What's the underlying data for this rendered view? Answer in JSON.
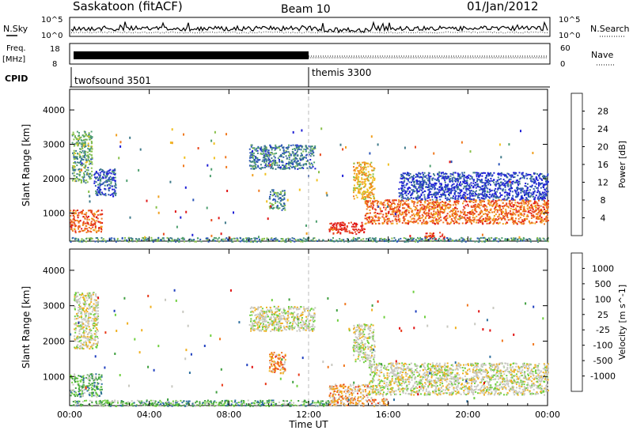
{
  "header": {
    "station": "Saskatoon (fitACF)",
    "beam": "Beam 10",
    "date": "01/Jan/2012"
  },
  "top_panels": {
    "nsky_label": "N.Sky",
    "nsearch_label": "N.Search",
    "freq_label_1": "Freq.",
    "freq_label_2": "[MHz]",
    "nave_label": "Nave",
    "cpid_label": "CPID",
    "noise_ticks_left": [
      "10^5",
      "10^0"
    ],
    "noise_ticks_right": [
      "10^5",
      "10^0"
    ],
    "freq_ticks": [
      "18",
      "8"
    ],
    "nave_ticks": [
      "60",
      "0"
    ],
    "cpid_programs": [
      {
        "name": "twofsound 3501",
        "start_hour": 0
      },
      {
        "name": "themis 3300",
        "start_hour": 12
      }
    ]
  },
  "chart_data": [
    {
      "type": "heatmap",
      "title": "Power",
      "xlabel": "Time UT",
      "ylabel": "Slant Range [km]",
      "xlim": [
        0,
        24
      ],
      "ylim": [
        180,
        4600
      ],
      "x_ticks": [
        "00:00",
        "04:00",
        "08:00",
        "12:00",
        "16:00",
        "20:00",
        "00:00"
      ],
      "y_ticks": [
        1000,
        2000,
        3000,
        4000
      ],
      "colorbar": {
        "label": "Power [dB]",
        "ticks": [
          4,
          8,
          12,
          16,
          20,
          24,
          28
        ],
        "colors": [
          "#1f1fd6",
          "#2b55b8",
          "#3f7a8a",
          "#4fa070",
          "#88c04a",
          "#f0c020",
          "#f0a020",
          "#f07a20",
          "#e84a20",
          "#e01818"
        ]
      },
      "regions": [
        {
          "t0": 0.0,
          "t1": 1.6,
          "r0": 450,
          "r1": 1100,
          "level": 0.82
        },
        {
          "t0": 0.1,
          "t1": 1.1,
          "r0": 1900,
          "r1": 3400,
          "level": 0.35
        },
        {
          "t0": 1.2,
          "t1": 2.3,
          "r0": 1500,
          "r1": 2300,
          "level": 0.15
        },
        {
          "t0": 9.0,
          "t1": 12.3,
          "r0": 2300,
          "r1": 3000,
          "level": 0.25
        },
        {
          "t0": 10.0,
          "t1": 10.8,
          "r0": 1100,
          "r1": 1700,
          "level": 0.3
        },
        {
          "t0": 13.0,
          "t1": 14.8,
          "r0": 400,
          "r1": 750,
          "level": 0.95
        },
        {
          "t0": 14.2,
          "t1": 15.3,
          "r0": 1400,
          "r1": 2500,
          "level": 0.6
        },
        {
          "t0": 14.8,
          "t1": 24.0,
          "r0": 700,
          "r1": 1400,
          "level": 0.78
        },
        {
          "t0": 16.5,
          "t1": 24.0,
          "r0": 1400,
          "r1": 2200,
          "level": 0.1
        },
        {
          "t0": 17.8,
          "t1": 18.8,
          "r0": 250,
          "r1": 450,
          "level": 0.9
        },
        {
          "t0": 0.0,
          "t1": 24.0,
          "r0": 180,
          "r1": 300,
          "level": 0.3
        }
      ]
    },
    {
      "type": "heatmap",
      "title": "Velocity",
      "xlabel": "Time UT",
      "ylabel": "Slant Range [km]",
      "xlim": [
        0,
        24
      ],
      "ylim": [
        180,
        4600
      ],
      "x_ticks": [
        "00:00",
        "04:00",
        "08:00",
        "12:00",
        "16:00",
        "20:00",
        "00:00"
      ],
      "y_ticks": [
        1000,
        2000,
        3000,
        4000
      ],
      "colorbar": {
        "label": "Velocity [m s^-1]",
        "ticks": [
          "1000",
          "500",
          "100",
          "25",
          "-25",
          "-100",
          "-500",
          "-1000"
        ],
        "colors": [
          "#1f3fbf",
          "#2f6f9f",
          "#3f9f3f",
          "#6fcf3f",
          "#c8c8c0",
          "#c8c8c0",
          "#f0b020",
          "#f07820",
          "#e83818",
          "#e01010"
        ]
      },
      "regions": [
        {
          "t0": 0.0,
          "t1": 1.6,
          "r0": 450,
          "r1": 1100,
          "level": 0.32
        },
        {
          "t0": 0.2,
          "t1": 1.4,
          "r0": 1800,
          "r1": 3400,
          "level": 0.5
        },
        {
          "t0": 9.0,
          "t1": 12.3,
          "r0": 2300,
          "r1": 3000,
          "level": 0.5
        },
        {
          "t0": 10.0,
          "t1": 10.8,
          "r0": 1100,
          "r1": 1700,
          "level": 0.72
        },
        {
          "t0": 13.0,
          "t1": 15.0,
          "r0": 400,
          "r1": 800,
          "level": 0.65
        },
        {
          "t0": 14.2,
          "t1": 15.3,
          "r0": 1400,
          "r1": 2500,
          "level": 0.5
        },
        {
          "t0": 15.0,
          "t1": 24.0,
          "r0": 500,
          "r1": 1400,
          "level": 0.5
        },
        {
          "t0": 0.0,
          "t1": 13.0,
          "r0": 180,
          "r1": 350,
          "level": 0.3
        },
        {
          "t0": 13.0,
          "t1": 16.0,
          "r0": 180,
          "r1": 400,
          "level": 0.65
        }
      ]
    }
  ]
}
